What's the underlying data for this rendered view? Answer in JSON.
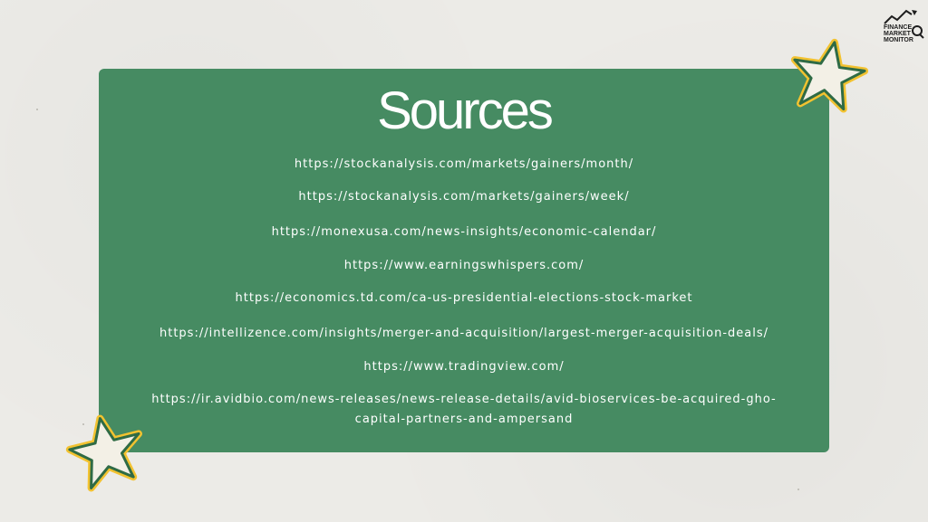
{
  "title": "Sources",
  "sources": [
    "https://stockanalysis.com/markets/gainers/month/",
    "https://stockanalysis.com/markets/gainers/week/",
    "https://monexusa.com/news-insights/economic-calendar/",
    "https://www.earningswhispers.com/",
    "https://economics.td.com/ca-us-presidential-elections-stock-market",
    "https://intellizence.com/insights/merger-and-acquisition/largest-merger-acquisition-deals/",
    "https://www.tradingview.com/",
    "https://ir.avidbio.com/news-releases/news-release-details/avid-bioservices-be-acquired-gho-capital-partners-and-ampersand"
  ],
  "logo": {
    "line1": "FINANCE",
    "line2": "MARKET",
    "line3": "MONITOR",
    "icon": "trend-arrow-magnifier-icon"
  },
  "colors": {
    "background": "#ecebe7",
    "card": "#468b62",
    "star_fill": "#f3f0e6",
    "star_outline": "#2f6b45",
    "star_glow": "#f2c230"
  }
}
